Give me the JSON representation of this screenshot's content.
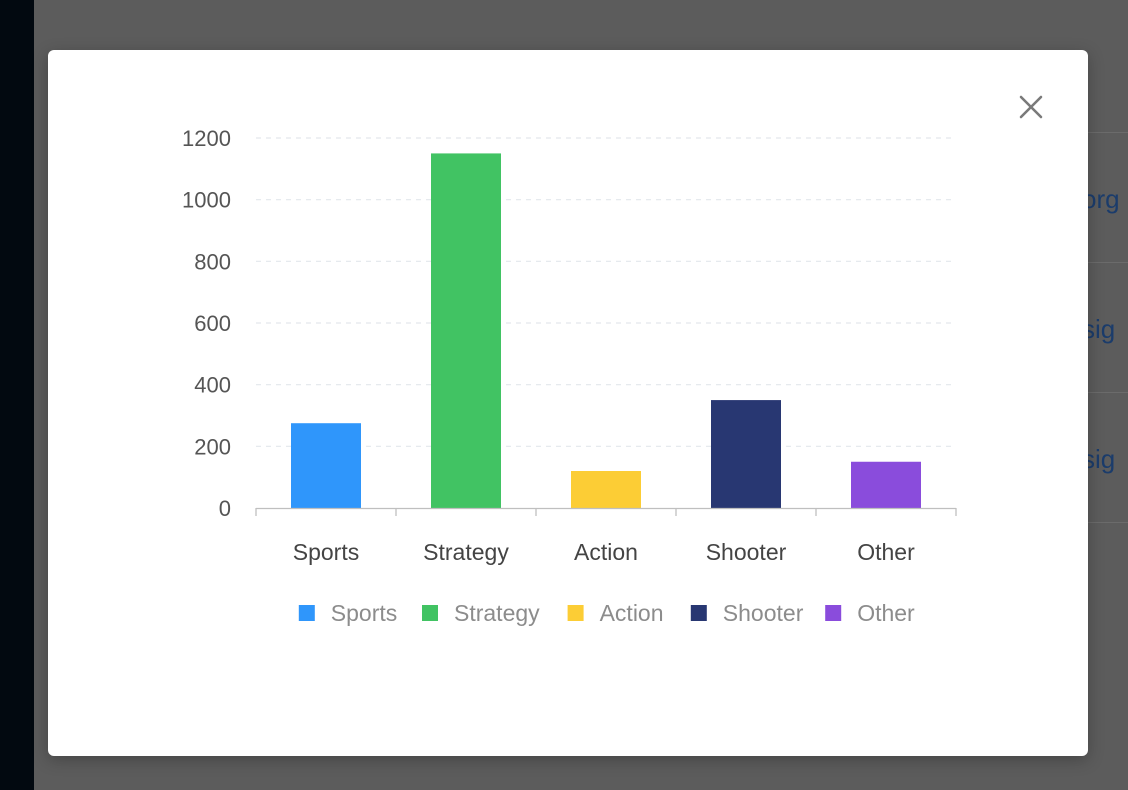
{
  "background": {
    "links": [
      "org",
      "sig",
      "sig"
    ]
  },
  "modal": {
    "close_icon": "close-icon"
  },
  "chart_data": {
    "type": "bar",
    "categories": [
      "Sports",
      "Strategy",
      "Action",
      "Shooter",
      "Other"
    ],
    "values": [
      275,
      1150,
      120,
      350,
      150
    ],
    "colors": [
      "#2f96fb",
      "#41c363",
      "#fccd35",
      "#283772",
      "#8a4cdc"
    ],
    "yticks": [
      0,
      200,
      400,
      600,
      800,
      1000,
      1200
    ],
    "ylim": [
      0,
      1200
    ],
    "grid": true,
    "legend": {
      "position": "bottom",
      "entries": [
        "Sports",
        "Strategy",
        "Action",
        "Shooter",
        "Other"
      ]
    }
  }
}
